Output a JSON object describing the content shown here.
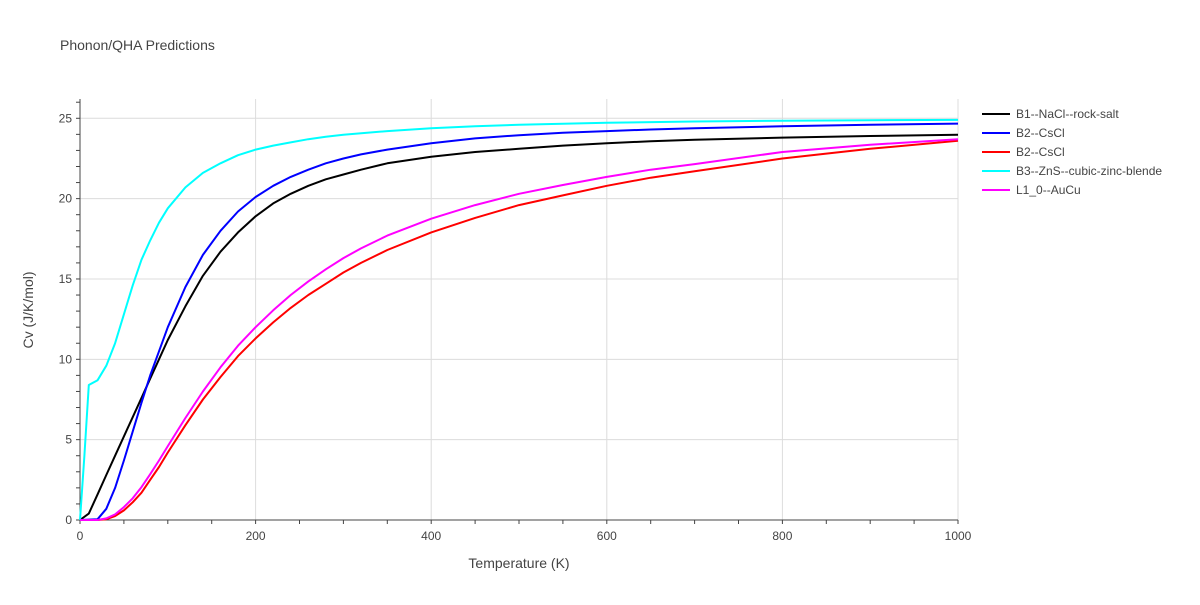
{
  "chart_data": {
    "type": "line",
    "title": "Phonon/QHA Predictions",
    "xlabel": "Temperature (K)",
    "ylabel": "Cv (J/K/mol)",
    "xlim": [
      0,
      1000
    ],
    "ylim": [
      0,
      26.2
    ],
    "x_ticks": [
      0,
      200,
      400,
      600,
      800,
      1000
    ],
    "y_ticks": [
      0,
      5,
      10,
      15,
      20,
      25
    ],
    "grid": true,
    "legend_position": "right",
    "series": [
      {
        "name": "B1--NaCl--rock-salt",
        "color": "#000000",
        "x": [
          0,
          10,
          20,
          30,
          40,
          50,
          60,
          70,
          80,
          90,
          100,
          120,
          140,
          160,
          180,
          200,
          220,
          240,
          260,
          280,
          300,
          320,
          350,
          400,
          450,
          500,
          550,
          600,
          650,
          700,
          800,
          900,
          1000
        ],
        "y": [
          0,
          0.4,
          1.6,
          2.8,
          4.0,
          5.2,
          6.4,
          7.6,
          8.8,
          10.0,
          11.2,
          13.3,
          15.2,
          16.7,
          17.9,
          18.9,
          19.7,
          20.3,
          20.8,
          21.2,
          21.5,
          21.8,
          22.2,
          22.6,
          22.9,
          23.1,
          23.3,
          23.45,
          23.57,
          23.66,
          23.8,
          23.9,
          23.97
        ]
      },
      {
        "name": "B2--CsCl",
        "color": "#0000ff",
        "x": [
          0,
          20,
          30,
          40,
          50,
          60,
          70,
          80,
          90,
          100,
          120,
          140,
          160,
          180,
          200,
          220,
          240,
          260,
          280,
          300,
          320,
          350,
          400,
          450,
          500,
          550,
          600,
          650,
          700,
          800,
          900,
          1000
        ],
        "y": [
          0,
          0.05,
          0.7,
          2.0,
          3.7,
          5.5,
          7.3,
          9.0,
          10.5,
          12.0,
          14.5,
          16.5,
          18.0,
          19.2,
          20.1,
          20.8,
          21.35,
          21.8,
          22.2,
          22.5,
          22.75,
          23.05,
          23.45,
          23.75,
          23.95,
          24.1,
          24.2,
          24.3,
          24.38,
          24.5,
          24.6,
          24.67
        ]
      },
      {
        "name": "B2--CsCl",
        "color": "#ff0000",
        "x": [
          0,
          20,
          30,
          40,
          50,
          60,
          70,
          80,
          90,
          100,
          120,
          140,
          160,
          180,
          200,
          220,
          240,
          260,
          280,
          300,
          320,
          350,
          400,
          450,
          500,
          550,
          600,
          650,
          700,
          800,
          900,
          1000
        ],
        "y": [
          0,
          0.0,
          0.05,
          0.25,
          0.6,
          1.1,
          1.7,
          2.5,
          3.3,
          4.2,
          5.9,
          7.5,
          8.9,
          10.2,
          11.3,
          12.3,
          13.2,
          14.0,
          14.7,
          15.4,
          16.0,
          16.8,
          17.9,
          18.8,
          19.6,
          20.2,
          20.8,
          21.3,
          21.7,
          22.5,
          23.1,
          23.6
        ]
      },
      {
        "name": "B3--ZnS--cubic-zinc-blende",
        "color": "#00ffff",
        "x": [
          0,
          5,
          10,
          20,
          30,
          40,
          50,
          60,
          70,
          80,
          90,
          100,
          120,
          140,
          160,
          180,
          200,
          220,
          240,
          260,
          280,
          300,
          350,
          400,
          450,
          500,
          600,
          700,
          800,
          900,
          1000
        ],
        "y": [
          0,
          4.0,
          8.4,
          8.7,
          9.6,
          11.0,
          12.8,
          14.6,
          16.2,
          17.4,
          18.5,
          19.4,
          20.7,
          21.6,
          22.2,
          22.7,
          23.05,
          23.3,
          23.5,
          23.7,
          23.85,
          23.98,
          24.2,
          24.38,
          24.5,
          24.6,
          24.72,
          24.8,
          24.85,
          24.88,
          24.9
        ]
      },
      {
        "name": "L1_0--AuCu",
        "color": "#ff00ff",
        "x": [
          0,
          20,
          30,
          40,
          50,
          60,
          70,
          80,
          90,
          100,
          120,
          140,
          160,
          180,
          200,
          220,
          240,
          260,
          280,
          300,
          320,
          350,
          400,
          450,
          500,
          550,
          600,
          650,
          700,
          800,
          900,
          1000
        ],
        "y": [
          0,
          0.0,
          0.1,
          0.35,
          0.8,
          1.35,
          2.05,
          2.85,
          3.7,
          4.6,
          6.35,
          8.0,
          9.5,
          10.85,
          12.0,
          13.05,
          14.0,
          14.85,
          15.6,
          16.3,
          16.9,
          17.7,
          18.75,
          19.6,
          20.3,
          20.85,
          21.35,
          21.8,
          22.15,
          22.9,
          23.35,
          23.7
        ]
      }
    ]
  }
}
